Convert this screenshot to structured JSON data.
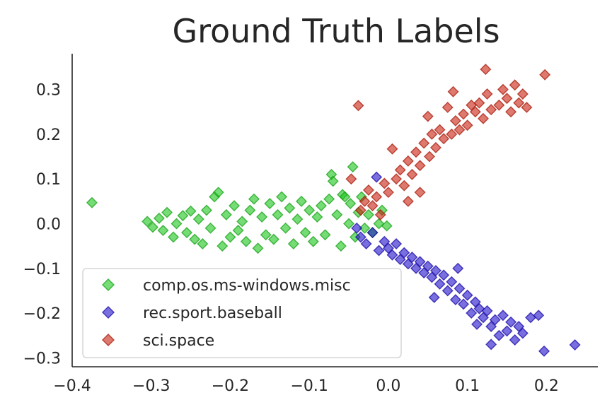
{
  "chart_data": {
    "type": "scatter",
    "title": "Ground Truth Labels",
    "xlabel": "",
    "ylabel": "",
    "xlim": [
      -0.4,
      0.265
    ],
    "ylim": [
      -0.32,
      0.38
    ],
    "xticks": [
      "−0.4",
      "−0.3",
      "−0.2",
      "−0.1",
      "0.0",
      "0.1",
      "0.2"
    ],
    "xtick_values": [
      -0.4,
      -0.3,
      -0.2,
      -0.1,
      0.0,
      0.1,
      0.2
    ],
    "yticks": [
      "−0.3",
      "−0.2",
      "−0.1",
      "0.0",
      "0.1",
      "0.2",
      "0.3"
    ],
    "ytick_values": [
      -0.3,
      -0.2,
      -0.1,
      0.0,
      0.1,
      0.2,
      0.3
    ],
    "grid": false,
    "legend_position": "lower-left",
    "marker": "diamond",
    "series": [
      {
        "name": "comp.os.ms-windows.misc",
        "fill": "#1bc41b",
        "stroke": "#16a016",
        "points": [
          [
            -0.375,
            0.047
          ],
          [
            -0.305,
            0.005
          ],
          [
            -0.298,
            -0.008
          ],
          [
            -0.29,
            0.012
          ],
          [
            -0.285,
            -0.015
          ],
          [
            -0.28,
            0.025
          ],
          [
            -0.272,
            -0.03
          ],
          [
            -0.268,
            0.0
          ],
          [
            -0.26,
            0.018
          ],
          [
            -0.255,
            -0.02
          ],
          [
            -0.25,
            0.028
          ],
          [
            -0.245,
            -0.035
          ],
          [
            -0.24,
            0.01
          ],
          [
            -0.235,
            -0.045
          ],
          [
            -0.23,
            0.03
          ],
          [
            -0.225,
            -0.01
          ],
          [
            -0.22,
            0.06
          ],
          [
            -0.215,
            0.07
          ],
          [
            -0.21,
            -0.05
          ],
          [
            -0.205,
            0.02
          ],
          [
            -0.2,
            -0.03
          ],
          [
            -0.195,
            0.04
          ],
          [
            -0.19,
            -0.015
          ],
          [
            -0.185,
            0.005
          ],
          [
            -0.18,
            -0.04
          ],
          [
            -0.175,
            0.03
          ],
          [
            -0.17,
            0.055
          ],
          [
            -0.165,
            -0.055
          ],
          [
            -0.16,
            0.015
          ],
          [
            -0.155,
            -0.025
          ],
          [
            -0.15,
            0.045
          ],
          [
            -0.145,
            -0.035
          ],
          [
            -0.14,
            0.02
          ],
          [
            -0.135,
            0.06
          ],
          [
            -0.13,
            -0.01
          ],
          [
            -0.125,
            0.035
          ],
          [
            -0.12,
            -0.045
          ],
          [
            -0.115,
            0.01
          ],
          [
            -0.11,
            0.05
          ],
          [
            -0.105,
            -0.02
          ],
          [
            -0.1,
            0.03
          ],
          [
            -0.095,
            -0.04
          ],
          [
            -0.09,
            0.015
          ],
          [
            -0.085,
            0.04
          ],
          [
            -0.08,
            -0.025
          ],
          [
            -0.075,
            0.055
          ],
          [
            -0.072,
            0.11
          ],
          [
            -0.07,
            0.095
          ],
          [
            -0.065,
            0.02
          ],
          [
            -0.06,
            -0.05
          ],
          [
            -0.058,
            0.065
          ],
          [
            -0.055,
            0.06
          ],
          [
            -0.05,
            0.0
          ],
          [
            -0.048,
            0.045
          ],
          [
            -0.045,
            0.127
          ],
          [
            -0.042,
            -0.03
          ],
          [
            -0.038,
            0.025
          ],
          [
            -0.034,
            0.06
          ],
          [
            -0.03,
            -0.01
          ],
          [
            -0.025,
            0.02
          ],
          [
            -0.02,
            -0.02
          ],
          [
            -0.012,
            0.0
          ],
          [
            -0.008,
            0.03
          ],
          [
            -0.002,
            -0.005
          ]
        ]
      },
      {
        "name": "rec.sport.baseball",
        "fill": "#1f0fc8",
        "stroke": "#1a0aa8",
        "points": [
          [
            -0.04,
            -0.01
          ],
          [
            -0.035,
            -0.03
          ],
          [
            -0.028,
            -0.045
          ],
          [
            -0.02,
            -0.02
          ],
          [
            -0.015,
            0.104
          ],
          [
            -0.012,
            -0.06
          ],
          [
            -0.005,
            -0.04
          ],
          [
            0.0,
            -0.055
          ],
          [
            0.005,
            -0.07
          ],
          [
            0.01,
            -0.045
          ],
          [
            0.015,
            -0.08
          ],
          [
            0.02,
            -0.065
          ],
          [
            0.025,
            -0.09
          ],
          [
            0.03,
            -0.075
          ],
          [
            0.035,
            -0.1
          ],
          [
            0.04,
            -0.085
          ],
          [
            0.045,
            -0.11
          ],
          [
            0.05,
            -0.095
          ],
          [
            0.055,
            -0.12
          ],
          [
            0.058,
            -0.165
          ],
          [
            0.06,
            -0.105
          ],
          [
            0.065,
            -0.135
          ],
          [
            0.07,
            -0.115
          ],
          [
            0.075,
            -0.15
          ],
          [
            0.08,
            -0.13
          ],
          [
            0.085,
            -0.17
          ],
          [
            0.088,
            -0.1
          ],
          [
            0.09,
            -0.145
          ],
          [
            0.095,
            -0.18
          ],
          [
            0.1,
            -0.16
          ],
          [
            0.105,
            -0.2
          ],
          [
            0.11,
            -0.175
          ],
          [
            0.112,
            -0.225
          ],
          [
            0.115,
            -0.19
          ],
          [
            0.12,
            -0.21
          ],
          [
            0.125,
            -0.195
          ],
          [
            0.13,
            -0.23
          ],
          [
            0.135,
            -0.215
          ],
          [
            0.14,
            -0.25
          ],
          [
            0.145,
            -0.205
          ],
          [
            0.15,
            -0.24
          ],
          [
            0.155,
            -0.22
          ],
          [
            0.16,
            -0.26
          ],
          [
            0.165,
            -0.23
          ],
          [
            0.17,
            -0.245
          ],
          [
            0.18,
            -0.21
          ],
          [
            0.19,
            -0.205
          ],
          [
            0.197,
            -0.285
          ],
          [
            0.236,
            -0.271
          ],
          [
            0.13,
            -0.27
          ]
        ]
      },
      {
        "name": "sci.space",
        "fill": "#c81f0f",
        "stroke": "#a81a0a",
        "points": [
          [
            -0.038,
            0.264
          ],
          [
            -0.035,
            0.03
          ],
          [
            -0.03,
            0.05
          ],
          [
            -0.025,
            0.075
          ],
          [
            -0.02,
            0.04
          ],
          [
            -0.015,
            0.06
          ],
          [
            -0.01,
            0.02
          ],
          [
            -0.005,
            0.09
          ],
          [
            0.0,
            0.07
          ],
          [
            0.005,
            0.167
          ],
          [
            0.01,
            0.1
          ],
          [
            0.015,
            0.12
          ],
          [
            0.02,
            0.085
          ],
          [
            0.025,
            0.14
          ],
          [
            0.03,
            0.11
          ],
          [
            0.035,
            0.16
          ],
          [
            0.04,
            0.13
          ],
          [
            0.045,
            0.18
          ],
          [
            0.05,
            0.24
          ],
          [
            0.052,
            0.15
          ],
          [
            0.055,
            0.2
          ],
          [
            0.06,
            0.17
          ],
          [
            0.065,
            0.21
          ],
          [
            0.07,
            0.19
          ],
          [
            0.075,
            0.26
          ],
          [
            0.08,
            0.2
          ],
          [
            0.082,
            0.295
          ],
          [
            0.085,
            0.23
          ],
          [
            0.09,
            0.21
          ],
          [
            0.095,
            0.245
          ],
          [
            0.1,
            0.22
          ],
          [
            0.105,
            0.265
          ],
          [
            0.11,
            0.25
          ],
          [
            0.115,
            0.27
          ],
          [
            0.12,
            0.235
          ],
          [
            0.123,
            0.345
          ],
          [
            0.125,
            0.29
          ],
          [
            0.13,
            0.255
          ],
          [
            0.14,
            0.265
          ],
          [
            0.145,
            0.3
          ],
          [
            0.15,
            0.28
          ],
          [
            0.155,
            0.25
          ],
          [
            0.16,
            0.31
          ],
          [
            0.165,
            0.27
          ],
          [
            0.17,
            0.29
          ],
          [
            0.175,
            0.26
          ],
          [
            0.198,
            0.333
          ],
          [
            -0.047,
            0.1
          ],
          [
            0.025,
            0.05
          ],
          [
            0.04,
            0.07
          ]
        ]
      }
    ],
    "legend": [
      {
        "label": "comp.os.ms-windows.misc",
        "fill": "#1bc41b",
        "stroke": "#16a016"
      },
      {
        "label": "rec.sport.baseball",
        "fill": "#1f0fc8",
        "stroke": "#1a0aa8"
      },
      {
        "label": "sci.space",
        "fill": "#c81f0f",
        "stroke": "#a81a0a"
      }
    ]
  }
}
